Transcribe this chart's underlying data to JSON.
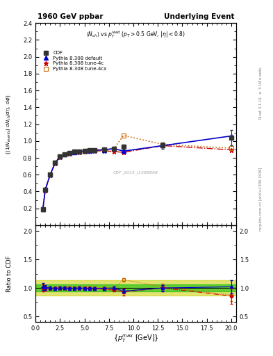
{
  "title_left": "1960 GeV ppbar",
  "title_right": "Underlying Event",
  "watermark": "CDF_2015_I1388868",
  "cdf_x": [
    0.75,
    1.0,
    1.5,
    2.0,
    2.5,
    3.0,
    3.5,
    4.0,
    4.5,
    5.0,
    5.5,
    6.0,
    7.0,
    8.0,
    9.0,
    13.0,
    20.0
  ],
  "cdf_y": [
    0.185,
    0.42,
    0.6,
    0.745,
    0.815,
    0.845,
    0.86,
    0.875,
    0.875,
    0.885,
    0.89,
    0.895,
    0.9,
    0.91,
    0.93,
    0.945,
    1.04
  ],
  "cdf_yerr": [
    0.015,
    0.025,
    0.02,
    0.02,
    0.015,
    0.015,
    0.015,
    0.015,
    0.015,
    0.015,
    0.015,
    0.015,
    0.015,
    0.018,
    0.025,
    0.04,
    0.09
  ],
  "py_default_x": [
    0.75,
    1.0,
    1.5,
    2.0,
    2.5,
    3.0,
    3.5,
    4.0,
    4.5,
    5.0,
    5.5,
    6.0,
    7.0,
    8.0,
    9.0,
    13.0,
    20.0
  ],
  "py_default_y": [
    0.19,
    0.425,
    0.6,
    0.74,
    0.815,
    0.845,
    0.855,
    0.87,
    0.875,
    0.88,
    0.885,
    0.89,
    0.895,
    0.91,
    0.88,
    0.945,
    1.06
  ],
  "py_4c_x": [
    0.75,
    1.0,
    1.5,
    2.0,
    2.5,
    3.0,
    3.5,
    4.0,
    4.5,
    5.0,
    5.5,
    6.0,
    7.0,
    8.0,
    9.0,
    13.0,
    20.0
  ],
  "py_4c_y": [
    0.185,
    0.415,
    0.595,
    0.735,
    0.81,
    0.84,
    0.85,
    0.865,
    0.87,
    0.875,
    0.88,
    0.88,
    0.885,
    0.875,
    0.865,
    0.945,
    0.895
  ],
  "py_4cx_x": [
    0.75,
    1.0,
    1.5,
    2.0,
    2.5,
    3.0,
    3.5,
    4.0,
    4.5,
    5.0,
    5.5,
    6.0,
    7.0,
    8.0,
    9.0,
    13.0,
    20.0
  ],
  "py_4cx_y": [
    0.185,
    0.42,
    0.6,
    0.74,
    0.815,
    0.845,
    0.86,
    0.875,
    0.875,
    0.885,
    0.89,
    0.895,
    0.9,
    0.91,
    1.065,
    0.96,
    0.915
  ],
  "ratio_default_y": [
    1.03,
    1.01,
    1.0,
    0.993,
    1.0,
    1.0,
    0.994,
    0.994,
    1.0,
    0.994,
    0.994,
    0.994,
    0.994,
    1.0,
    0.946,
    1.0,
    1.02
  ],
  "ratio_4c_y": [
    1.0,
    0.988,
    0.992,
    0.987,
    0.994,
    0.994,
    0.988,
    0.989,
    0.994,
    0.989,
    0.989,
    0.983,
    0.983,
    0.962,
    0.93,
    1.0,
    0.86
  ],
  "ratio_4cx_y": [
    1.0,
    1.0,
    1.0,
    1.0,
    1.0,
    1.0,
    1.0,
    1.0,
    1.0,
    1.0,
    1.0,
    1.0,
    1.0,
    1.0,
    1.145,
    1.015,
    0.88
  ],
  "ratio_default_yerr": [
    0.06,
    0.04,
    0.025,
    0.022,
    0.022,
    0.022,
    0.022,
    0.022,
    0.022,
    0.022,
    0.022,
    0.022,
    0.022,
    0.025,
    0.035,
    0.055,
    0.11
  ],
  "ratio_4c_yerr": [
    0.06,
    0.04,
    0.025,
    0.022,
    0.022,
    0.022,
    0.022,
    0.022,
    0.022,
    0.022,
    0.022,
    0.022,
    0.022,
    0.025,
    0.06,
    0.055,
    0.14
  ],
  "ratio_4cx_yerr": [
    0.06,
    0.04,
    0.025,
    0.022,
    0.022,
    0.022,
    0.022,
    0.022,
    0.022,
    0.022,
    0.022,
    0.022,
    0.022,
    0.025,
    0.03,
    0.055,
    0.11
  ],
  "green_band": [
    0.94,
    1.06
  ],
  "yellow_band": [
    0.87,
    1.13
  ],
  "color_cdf": "#333333",
  "color_default": "#0000cc",
  "color_4c": "#cc0000",
  "color_4cx": "#cc6600",
  "color_green": "#00bb00",
  "color_yellow": "#cccc00",
  "ylim_main": [
    0.0,
    2.4
  ],
  "yticks_main": [
    0.2,
    0.4,
    0.6,
    0.8,
    1.0,
    1.2,
    1.4,
    1.6,
    1.8,
    2.0,
    2.2,
    2.4
  ],
  "ylim_ratio": [
    0.4,
    2.1
  ],
  "yticks_ratio": [
    0.5,
    1.0,
    1.5,
    2.0
  ],
  "xlim": [
    0.0,
    20.5
  ]
}
